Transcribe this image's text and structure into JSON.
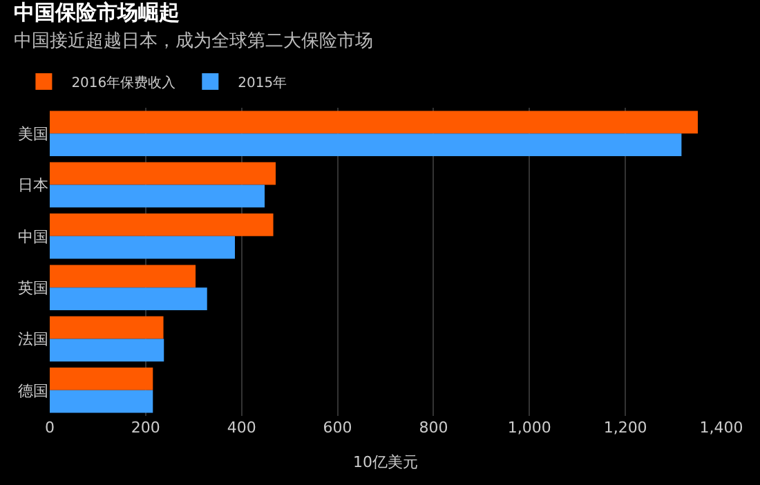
{
  "chart_data": {
    "type": "bar",
    "orientation": "horizontal",
    "title": "中国保险市场崛起",
    "subtitle": "中国接近超越日本，成为全球第二大保险市场",
    "xlabel": "10亿美元",
    "categories": [
      "美国",
      "日本",
      "中国",
      "英国",
      "法国",
      "德国"
    ],
    "series": [
      {
        "name": "2016年保费收入",
        "color": "#ff5a00",
        "values": [
          1351,
          471,
          466,
          304,
          237,
          215
        ]
      },
      {
        "name": "2015年",
        "color": "#3ea0ff",
        "values": [
          1317,
          448,
          386,
          328,
          238,
          215
        ]
      }
    ],
    "xlim": [
      0,
      1400
    ],
    "xticks": [
      0,
      200,
      400,
      600,
      800,
      {
        "value": 1000,
        "label": "1,000"
      },
      {
        "value": 1200,
        "label": "1,200"
      },
      {
        "value": 1400,
        "label": "1,400"
      }
    ],
    "grid": "x",
    "legend": "top left"
  }
}
